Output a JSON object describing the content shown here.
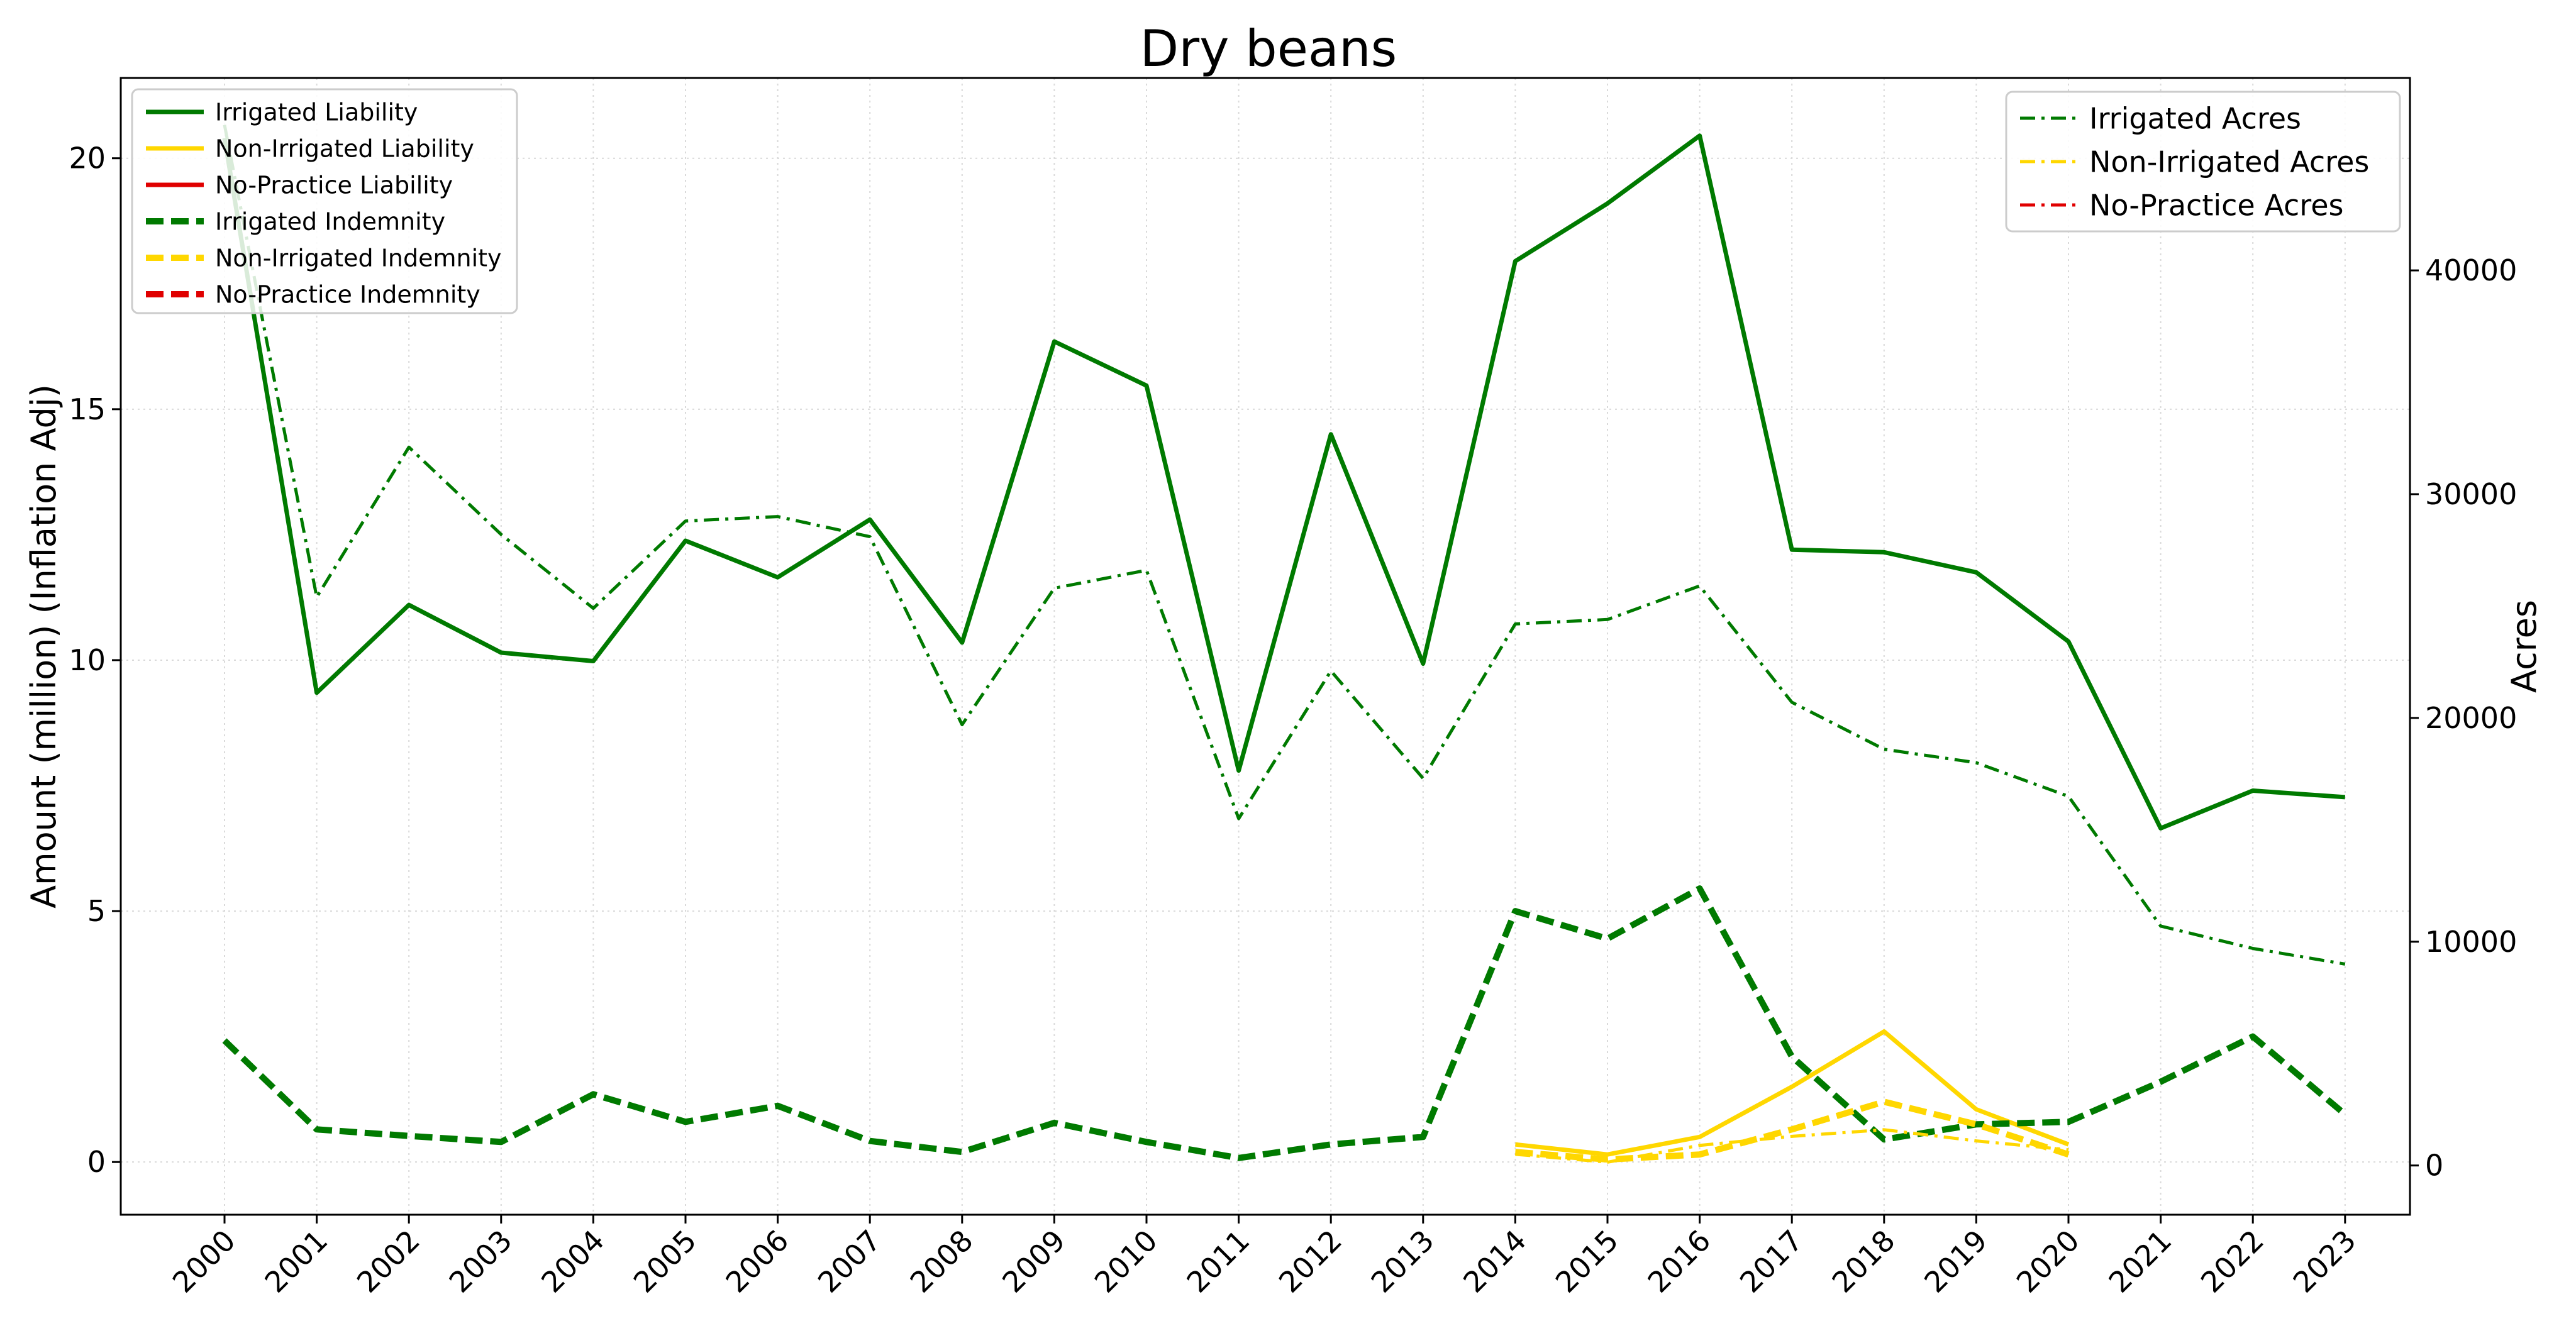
{
  "chart_data": {
    "type": "line",
    "title": "Dry beans",
    "ylabel": "Amount (million) (Inflation Adj)",
    "y2label": "Acres",
    "xlabel": "",
    "categories": [
      "2000",
      "2001",
      "2002",
      "2003",
      "2004",
      "2005",
      "2006",
      "2007",
      "2008",
      "2009",
      "2010",
      "2011",
      "2012",
      "2013",
      "2014",
      "2015",
      "2016",
      "2017",
      "2018",
      "2019",
      "2020",
      "2021",
      "2022",
      "2023"
    ],
    "ylim": [
      -1.05,
      21.6
    ],
    "y2lim": [
      -2200,
      48600
    ],
    "yticks": [
      0,
      5,
      10,
      15,
      20
    ],
    "y2ticks": [
      0,
      10000,
      20000,
      30000,
      40000
    ],
    "grid": true,
    "colors": {
      "irrigated": "#007a00",
      "non_irrigated": "#ffd700",
      "no_practice": "#e00000"
    },
    "legend_left": [
      "Irrigated Liability",
      "Non-Irrigated Liability",
      "No-Practice Liability",
      "Irrigated Indemnity",
      "Non-Irrigated Indemnity",
      "No-Practice Indemnity"
    ],
    "legend_right": [
      "Irrigated Acres",
      "Non-Irrigated Acres",
      "No-Practice Acres"
    ],
    "legend_left_placement": "top-left",
    "legend_right_placement": "top-right",
    "series": [
      {
        "name": "Irrigated Liability",
        "axis": "left",
        "color": "irrigated",
        "style": "solid",
        "values": [
          20.4,
          9.35,
          11.1,
          10.15,
          9.98,
          12.38,
          11.65,
          12.8,
          10.35,
          16.35,
          15.47,
          7.8,
          14.5,
          9.93,
          17.95,
          19.1,
          20.45,
          12.2,
          12.15,
          11.75,
          10.37,
          6.65,
          7.4,
          7.27
        ]
      },
      {
        "name": "Non-Irrigated Liability",
        "axis": "left",
        "color": "non_irrigated",
        "style": "solid",
        "values": [
          null,
          null,
          null,
          null,
          null,
          null,
          null,
          null,
          null,
          null,
          null,
          null,
          null,
          null,
          0.35,
          0.15,
          0.5,
          1.5,
          2.6,
          1.05,
          0.35,
          null,
          null,
          null
        ]
      },
      {
        "name": "No-Practice Liability",
        "axis": "left",
        "color": "no_practice",
        "style": "solid",
        "values": [
          null,
          null,
          null,
          null,
          null,
          null,
          null,
          null,
          null,
          null,
          null,
          null,
          null,
          null,
          null,
          null,
          null,
          null,
          null,
          null,
          null,
          null,
          null,
          null
        ]
      },
      {
        "name": "Irrigated Indemnity",
        "axis": "left",
        "color": "irrigated",
        "style": "dashed",
        "values": [
          2.42,
          0.65,
          0.52,
          0.4,
          1.35,
          0.8,
          1.12,
          0.42,
          0.2,
          0.78,
          0.4,
          0.08,
          0.35,
          0.5,
          5.0,
          4.45,
          5.45,
          2.1,
          0.45,
          0.75,
          0.8,
          1.6,
          2.5,
          0.95
        ]
      },
      {
        "name": "Non-Irrigated Indemnity",
        "axis": "left",
        "color": "non_irrigated",
        "style": "dashed",
        "values": [
          null,
          null,
          null,
          null,
          null,
          null,
          null,
          null,
          null,
          null,
          null,
          null,
          null,
          null,
          0.2,
          0.05,
          0.15,
          0.65,
          1.2,
          0.75,
          0.15,
          null,
          null,
          null
        ]
      },
      {
        "name": "No-Practice Indemnity",
        "axis": "left",
        "color": "no_practice",
        "style": "dashed",
        "values": [
          null,
          null,
          null,
          null,
          null,
          null,
          null,
          null,
          null,
          null,
          null,
          null,
          null,
          null,
          null,
          null,
          null,
          null,
          null,
          null,
          null,
          null,
          null,
          null
        ]
      },
      {
        "name": "Irrigated Acres",
        "axis": "right",
        "color": "irrigated",
        "style": "dashdot",
        "values": [
          46500,
          25400,
          32100,
          28200,
          24900,
          28800,
          29000,
          28100,
          19700,
          25800,
          26600,
          15500,
          22100,
          17300,
          24200,
          24400,
          25900,
          20700,
          18600,
          18000,
          16500,
          10700,
          9700,
          9000
        ]
      },
      {
        "name": "Non-Irrigated Acres",
        "axis": "right",
        "color": "non_irrigated",
        "style": "dashdot",
        "values": [
          null,
          null,
          null,
          null,
          null,
          null,
          null,
          null,
          null,
          null,
          null,
          null,
          null,
          null,
          500,
          150,
          900,
          1300,
          1600,
          1100,
          700,
          null,
          null,
          null
        ]
      },
      {
        "name": "No-Practice Acres",
        "axis": "right",
        "color": "no_practice",
        "style": "dashdot",
        "values": [
          null,
          null,
          null,
          null,
          null,
          null,
          null,
          null,
          null,
          null,
          null,
          null,
          null,
          null,
          null,
          null,
          null,
          null,
          null,
          null,
          null,
          null,
          null,
          null
        ]
      }
    ]
  }
}
